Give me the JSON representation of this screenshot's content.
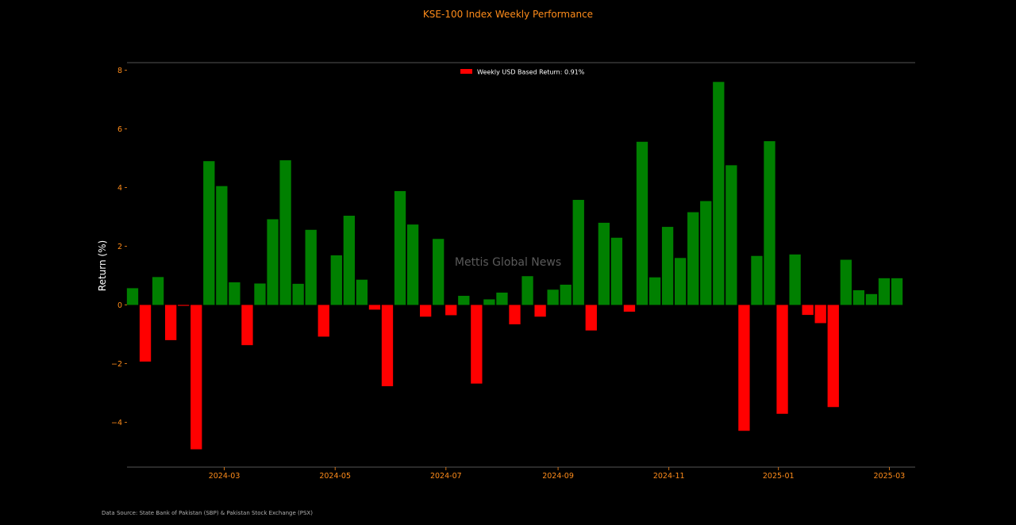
{
  "chart_data": {
    "type": "bar",
    "title": "KSE-100 Index Weekly Performance",
    "xlabel": "",
    "ylabel": "Return (%)",
    "ylim": [
      -5.5,
      8.2
    ],
    "yticks": [
      -4,
      -2,
      0,
      2,
      4,
      6,
      8
    ],
    "ytick_labels": [
      "−4",
      "−2",
      "0",
      "2",
      "4",
      "6",
      "8"
    ],
    "xtick_labels": [
      "2024-03",
      "2024-05",
      "2024-07",
      "2024-09",
      "2024-11",
      "2025-01",
      "2025-03"
    ],
    "xtick_positions": [
      7.2,
      15.9,
      24.6,
      33.4,
      42.1,
      50.7,
      59.4
    ],
    "legend": {
      "label": "Weekly USD Based Return: 0.91%",
      "color": "#ff0000",
      "position": "upper-center"
    },
    "watermark": "Mettis Global News",
    "source": "Data Source: State Bank of Pakistan (SBP) & Pakistan Stock Exchange (PSX)",
    "colors": {
      "positive": "#008000",
      "negative": "#ff0000",
      "text_accent": "#ff8c1a",
      "background": "#000000",
      "axis": "#555555"
    },
    "values": [
      0.57,
      -1.93,
      0.95,
      -1.2,
      -0.03,
      -4.92,
      4.9,
      4.05,
      0.77,
      -1.37,
      0.73,
      2.92,
      4.93,
      0.72,
      2.56,
      -1.08,
      1.69,
      3.04,
      0.86,
      -0.16,
      -2.77,
      3.88,
      2.74,
      -0.4,
      2.25,
      -0.35,
      0.31,
      -2.68,
      0.19,
      0.42,
      -0.66,
      0.98,
      -0.4,
      0.52,
      0.69,
      3.58,
      -0.87,
      2.8,
      2.29,
      -0.23,
      5.56,
      0.94,
      2.66,
      1.6,
      3.16,
      3.54,
      7.6,
      4.76,
      -4.29,
      1.67,
      5.58,
      -3.71,
      1.72,
      -0.34,
      -0.62,
      -3.48,
      1.54,
      0.5,
      0.37,
      0.91,
      0.91
    ]
  }
}
